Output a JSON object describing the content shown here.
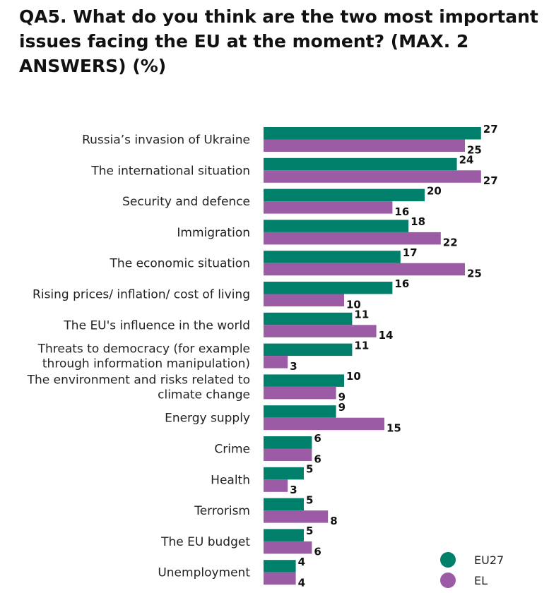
{
  "chart_data": {
    "type": "bar",
    "orientation": "horizontal",
    "title": "QA5. What do you think are the two most important issues facing the EU at the moment? (MAX. 2 ANSWERS) (%)",
    "categories": [
      "Russia’s invasion of Ukraine",
      "The international situation",
      "Security and defence",
      "Immigration",
      "The economic situation",
      "Rising prices/ inflation/ cost of living",
      "The EU's influence in the world",
      "Threats to democracy (for example through information manipulation)",
      "The environment and risks related to climate change",
      "Energy supply",
      "Crime",
      "Health",
      "Terrorism",
      "The EU budget",
      "Unemployment"
    ],
    "category_lines": [
      [
        "Russia’s invasion of Ukraine"
      ],
      [
        "The international situation"
      ],
      [
        "Security and defence"
      ],
      [
        "Immigration"
      ],
      [
        "The economic situation"
      ],
      [
        "Rising prices/ inflation/ cost of living"
      ],
      [
        "The EU's influence in the world"
      ],
      [
        "Threats to democracy (for example",
        "through information manipulation)"
      ],
      [
        "The environment and risks related to",
        "climate change"
      ],
      [
        "Energy supply"
      ],
      [
        "Crime"
      ],
      [
        "Health"
      ],
      [
        "Terrorism"
      ],
      [
        "The EU budget"
      ],
      [
        "Unemployment"
      ]
    ],
    "series": [
      {
        "name": "EU27",
        "color": "#00806B",
        "values": [
          27,
          24,
          20,
          18,
          17,
          16,
          11,
          11,
          10,
          9,
          6,
          5,
          5,
          5,
          4
        ]
      },
      {
        "name": "EL",
        "color": "#9B5BA5",
        "values": [
          25,
          27,
          16,
          22,
          25,
          10,
          14,
          3,
          9,
          15,
          6,
          3,
          8,
          6,
          4
        ]
      }
    ],
    "xlim": [
      0,
      27
    ],
    "grid": false,
    "data_labels": true,
    "legend_position": "bottom-right"
  }
}
